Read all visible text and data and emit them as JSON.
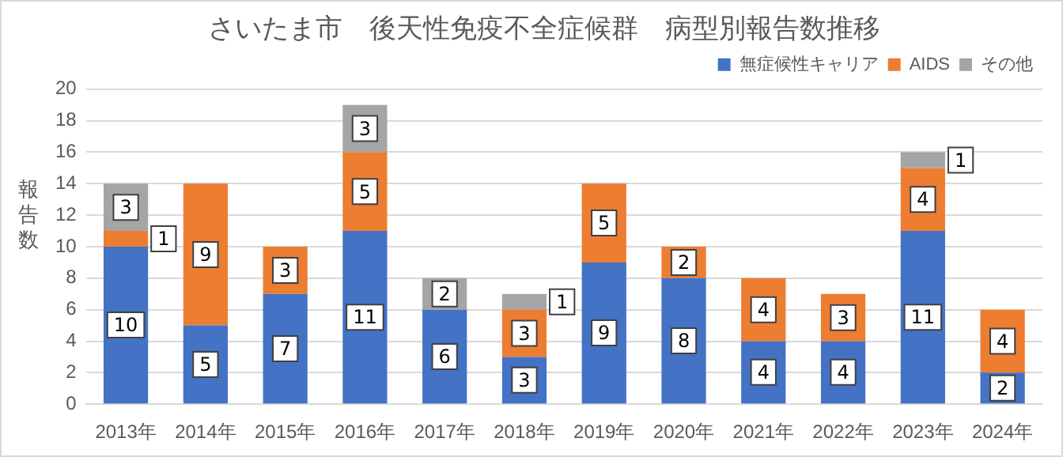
{
  "chart_data": {
    "type": "bar",
    "title": "さいたま市　後天性免疫不全症候群　病型別報告数推移",
    "ylabel": "報告数",
    "categories": [
      "2013年",
      "2014年",
      "2015年",
      "2016年",
      "2017年",
      "2018年",
      "2019年",
      "2020年",
      "2021年",
      "2022年",
      "2023年",
      "2024年"
    ],
    "series": [
      {
        "name": "無症候性キャリア",
        "color": "#4472c4",
        "values": [
          10,
          5,
          7,
          11,
          6,
          3,
          9,
          8,
          4,
          4,
          11,
          2
        ]
      },
      {
        "name": "AIDS",
        "color": "#ed7d31",
        "values": [
          1,
          9,
          3,
          5,
          null,
          3,
          5,
          2,
          4,
          3,
          4,
          4
        ]
      },
      {
        "name": "その他",
        "color": "#a5a5a5",
        "values": [
          3,
          null,
          null,
          3,
          2,
          1,
          null,
          null,
          null,
          null,
          1,
          null
        ]
      }
    ],
    "stacked": true,
    "ylim": [
      0,
      20
    ],
    "yticks": [
      0,
      2,
      4,
      6,
      8,
      10,
      12,
      14,
      16,
      18,
      20
    ],
    "grid": "y",
    "legend": "top right",
    "data_labels": true
  }
}
